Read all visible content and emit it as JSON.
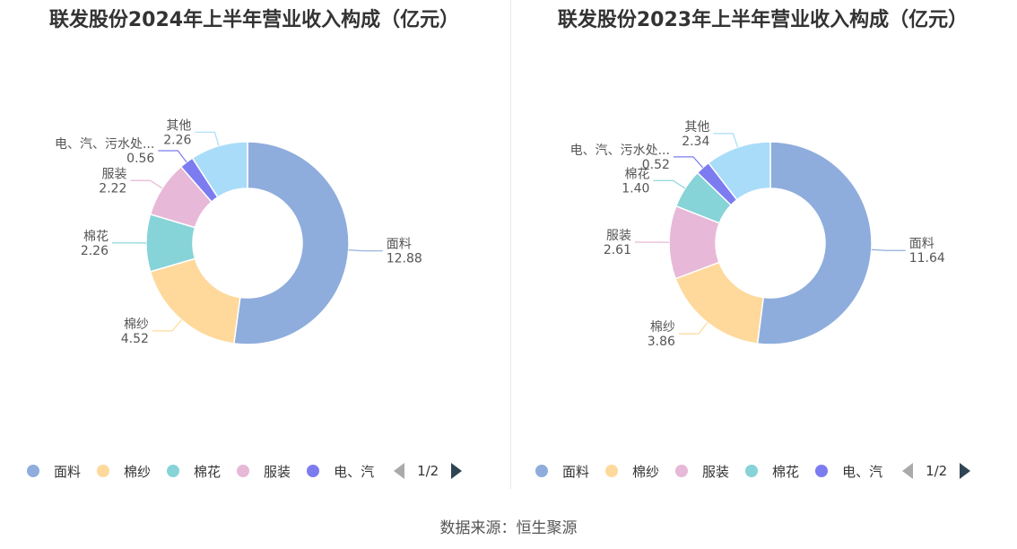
{
  "chart_data": [
    {
      "type": "pie",
      "title": "联发股份2024年上半年营业收入构成（亿元）",
      "slices": [
        {
          "label": "面料",
          "value": 12.88,
          "color": "#8eaddc"
        },
        {
          "label": "棉纱",
          "value": 4.52,
          "color": "#fed99b"
        },
        {
          "label": "棉花",
          "value": 2.26,
          "color": "#86d3d8"
        },
        {
          "label": "服装",
          "value": 2.22,
          "color": "#e7b8d8"
        },
        {
          "label": "电、汽、污水处...",
          "value": 0.56,
          "color": "#7c7cf0"
        },
        {
          "label": "其他",
          "value": 2.26,
          "color": "#a9dcf9"
        }
      ],
      "legend": {
        "items": [
          "面料",
          "棉纱",
          "棉花",
          "服装",
          "电、汽"
        ],
        "page": "1/2",
        "placement": "bottom"
      }
    },
    {
      "type": "pie",
      "title": "联发股份2023年上半年营业收入构成（亿元）",
      "slices": [
        {
          "label": "面料",
          "value": 11.64,
          "color": "#8eaddc"
        },
        {
          "label": "棉纱",
          "value": 3.86,
          "color": "#fed99b"
        },
        {
          "label": "服装",
          "value": 2.61,
          "color": "#e7b8d8"
        },
        {
          "label": "棉花",
          "value": 1.4,
          "color": "#86d3d8"
        },
        {
          "label": "电、汽、污水处...",
          "value": 0.52,
          "color": "#7c7cf0"
        },
        {
          "label": "其他",
          "value": 2.34,
          "color": "#a9dcf9"
        }
      ],
      "legend": {
        "items": [
          "面料",
          "棉纱",
          "服装",
          "棉花",
          "电、汽"
        ],
        "page": "1/2",
        "placement": "bottom"
      }
    }
  ],
  "footer": {
    "source": "数据来源：恒生聚源"
  }
}
